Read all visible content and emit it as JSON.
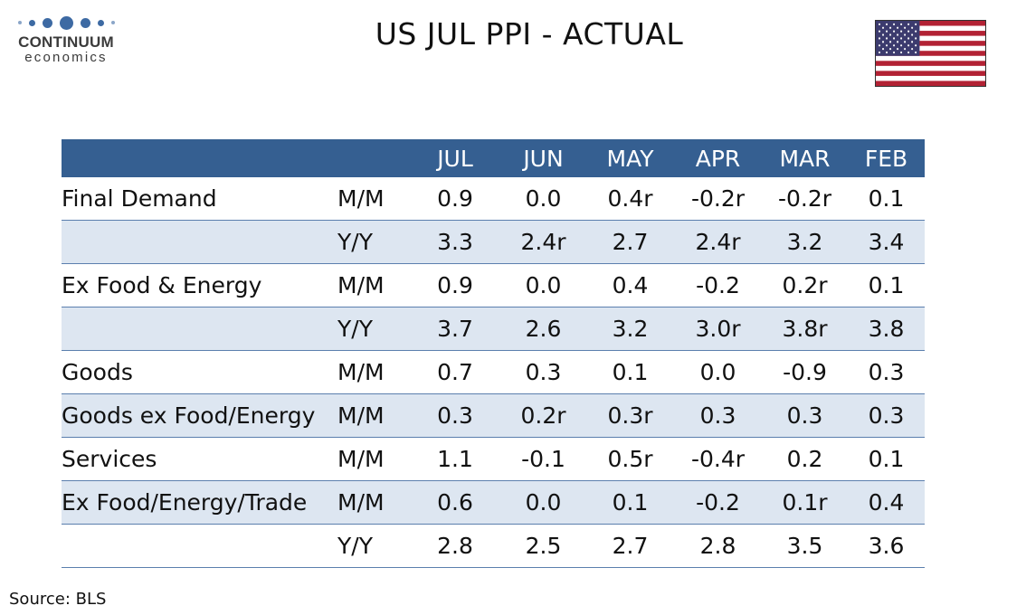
{
  "logo": {
    "name": "CONTINUUM",
    "sub": "economics",
    "brand_color": "#3d6aa3"
  },
  "title": "US JUL PPI - ACTUAL",
  "source": "Source: BLS",
  "colors": {
    "header_bg": "#355f91",
    "row_shade": "#dde6f1",
    "rule": "#5b7fae"
  },
  "chart_data": {
    "type": "table",
    "title": "US JUL PPI - ACTUAL",
    "columns": [
      "JUL",
      "JUN",
      "MAY",
      "APR",
      "MAR",
      "FEB"
    ],
    "rows": [
      {
        "label": "Final Demand",
        "measure": "M/M",
        "values": [
          "0.9",
          "0.0",
          "0.4r",
          "-0.2r",
          "-0.2r",
          "0.1"
        ],
        "shaded": false
      },
      {
        "label": "",
        "measure": "Y/Y",
        "values": [
          "3.3",
          "2.4r",
          "2.7",
          "2.4r",
          "3.2",
          "3.4"
        ],
        "shaded": true
      },
      {
        "label": "Ex Food & Energy",
        "measure": "M/M",
        "values": [
          "0.9",
          "0.0",
          "0.4",
          "-0.2",
          "0.2r",
          "0.1"
        ],
        "shaded": false
      },
      {
        "label": "",
        "measure": "Y/Y",
        "values": [
          "3.7",
          "2.6",
          "3.2",
          "3.0r",
          "3.8r",
          "3.8"
        ],
        "shaded": true
      },
      {
        "label": "Goods",
        "measure": "M/M",
        "values": [
          "0.7",
          "0.3",
          "0.1",
          "0.0",
          "-0.9",
          "0.3"
        ],
        "shaded": false
      },
      {
        "label": "Goods ex Food/Energy",
        "measure": "M/M",
        "values": [
          "0.3",
          "0.2r",
          "0.3r",
          "0.3",
          "0.3",
          "0.3"
        ],
        "shaded": true
      },
      {
        "label": "Services",
        "measure": "M/M",
        "values": [
          "1.1",
          "-0.1",
          "0.5r",
          "-0.4r",
          "0.2",
          "0.1"
        ],
        "shaded": false
      },
      {
        "label": "Ex Food/Energy/Trade",
        "measure": "M/M",
        "values": [
          "0.6",
          "0.0",
          "0.1",
          "-0.2",
          "0.1r",
          "0.4"
        ],
        "shaded": true
      },
      {
        "label": "",
        "measure": "Y/Y",
        "values": [
          "2.8",
          "2.5",
          "2.7",
          "2.8",
          "3.5",
          "3.6"
        ],
        "shaded": false
      }
    ]
  }
}
